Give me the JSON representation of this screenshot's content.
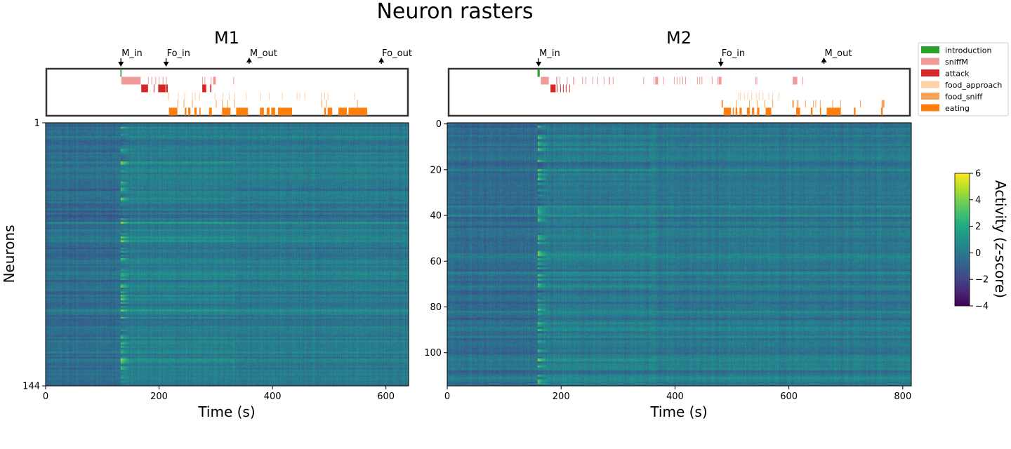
{
  "title": "Neuron rasters",
  "colorbar": {
    "label": "Activity (z-score)",
    "min": -4,
    "max": 6,
    "ticks": [
      "6",
      "4",
      "2",
      "0",
      "−2",
      "−4"
    ],
    "tick_values": [
      6,
      4,
      2,
      0,
      -2,
      -4
    ]
  },
  "legend": [
    {
      "name": "introduction",
      "color": "#2ca02c"
    },
    {
      "name": "sniffM",
      "color": "#f09a9a"
    },
    {
      "name": "attack",
      "color": "#d62728"
    },
    {
      "name": "food_approach",
      "color": "#ffd2a8"
    },
    {
      "name": "food_sniff",
      "color": "#f7a35c"
    },
    {
      "name": "eating",
      "color": "#ff7f0e"
    }
  ],
  "chart_data": [
    {
      "type": "heatmap",
      "title": "M1",
      "xlabel": "Time (s)",
      "ylabel": "Neurons",
      "xlim": [
        0,
        640
      ],
      "n_neurons": 144,
      "x_ticks": [
        0,
        200,
        400,
        600
      ],
      "x_tick_labels": [
        "0",
        "200",
        "400",
        "600"
      ],
      "y_ticks": [
        1,
        144
      ],
      "y_tick_labels": [
        "1",
        "144"
      ],
      "events": [
        {
          "label": "M_in",
          "time": 132,
          "direction": "down"
        },
        {
          "label": "Fo_in",
          "time": 212,
          "direction": "down"
        },
        {
          "label": "M_out",
          "time": 359,
          "direction": "up"
        },
        {
          "label": "Fo_out",
          "time": 593,
          "direction": "up"
        }
      ],
      "behaviors": {
        "introduction": [
          [
            131,
            133
          ]
        ],
        "sniffM": [
          [
            133,
            167
          ],
          [
            180,
            181
          ],
          [
            186,
            187
          ],
          [
            193,
            194
          ],
          [
            199,
            200
          ],
          [
            206,
            207
          ],
          [
            212,
            213
          ],
          [
            276,
            277
          ],
          [
            280,
            281
          ],
          [
            291,
            292
          ],
          [
            295,
            300
          ],
          [
            331,
            332
          ]
        ],
        "attack": [
          [
            168,
            180
          ],
          [
            190,
            191
          ],
          [
            198,
            211
          ],
          [
            212,
            215
          ],
          [
            276,
            283
          ],
          [
            290,
            292
          ]
        ],
        "food_approach": [
          [
            215,
            217
          ],
          [
            233,
            234
          ],
          [
            244,
            245
          ],
          [
            258,
            259
          ],
          [
            263,
            264
          ],
          [
            271,
            272
          ],
          [
            298,
            299
          ],
          [
            312,
            313
          ],
          [
            323,
            324
          ],
          [
            333,
            334
          ],
          [
            353,
            354
          ],
          [
            379,
            380
          ],
          [
            394,
            395
          ],
          [
            417,
            418
          ],
          [
            443,
            444
          ],
          [
            448,
            449
          ],
          [
            457,
            458
          ],
          [
            486,
            487
          ],
          [
            492,
            493
          ],
          [
            498,
            499
          ],
          [
            545,
            546
          ]
        ],
        "food_sniff": [
          [
            232,
            233
          ],
          [
            243,
            244
          ],
          [
            258,
            259
          ],
          [
            300,
            301
          ],
          [
            311,
            312
          ],
          [
            320,
            321
          ],
          [
            332,
            333
          ],
          [
            487,
            488
          ],
          [
            495,
            496
          ],
          [
            550,
            551
          ]
        ],
        "eating": [
          [
            217,
            232
          ],
          [
            245,
            248
          ],
          [
            251,
            255
          ],
          [
            262,
            266
          ],
          [
            271,
            273
          ],
          [
            288,
            293
          ],
          [
            311,
            326
          ],
          [
            336,
            357
          ],
          [
            378,
            385
          ],
          [
            390,
            395
          ],
          [
            398,
            405
          ],
          [
            410,
            435
          ],
          [
            492,
            495
          ],
          [
            498,
            506
          ],
          [
            517,
            532
          ],
          [
            535,
            568
          ]
        ]
      }
    },
    {
      "type": "heatmap",
      "title": "M2",
      "xlabel": "Time (s)",
      "ylabel": "",
      "xlim": [
        0,
        815
      ],
      "n_neurons": 115,
      "x_ticks": [
        0,
        200,
        400,
        600,
        800
      ],
      "x_tick_labels": [
        "0",
        "200",
        "400",
        "600",
        "800"
      ],
      "y_ticks": [
        0,
        20,
        40,
        60,
        80,
        100
      ],
      "y_tick_labels": [
        "0",
        "20",
        "40",
        "60",
        "80",
        "100"
      ],
      "events": [
        {
          "label": "M_in",
          "time": 159,
          "direction": "down"
        },
        {
          "label": "Fo_in",
          "time": 481,
          "direction": "down"
        },
        {
          "label": "M_out",
          "time": 663,
          "direction": "up"
        }
      ],
      "behaviors": {
        "introduction": [
          [
            157,
            161
          ]
        ],
        "sniffM": [
          [
            163,
            177
          ],
          [
            190,
            192
          ],
          [
            196,
            197
          ],
          [
            209,
            210
          ],
          [
            220,
            222
          ],
          [
            236,
            237
          ],
          [
            242,
            243
          ],
          [
            254,
            255
          ],
          [
            263,
            264
          ],
          [
            274,
            275
          ],
          [
            283,
            285
          ],
          [
            290,
            291
          ],
          [
            344,
            345
          ],
          [
            362,
            363
          ],
          [
            365,
            370
          ],
          [
            379,
            380
          ],
          [
            398,
            399
          ],
          [
            403,
            404
          ],
          [
            408,
            409
          ],
          [
            413,
            414
          ],
          [
            418,
            419
          ],
          [
            439,
            440
          ],
          [
            443,
            444
          ],
          [
            447,
            448
          ],
          [
            465,
            466
          ],
          [
            475,
            476
          ],
          [
            477,
            482
          ],
          [
            542,
            543
          ],
          [
            544,
            545
          ],
          [
            608,
            616
          ],
          [
            625,
            626
          ]
        ],
        "attack": [
          [
            180,
            189
          ],
          [
            191,
            192
          ],
          [
            197,
            198
          ],
          [
            202,
            203
          ],
          [
            207,
            208
          ],
          [
            213,
            214
          ]
        ],
        "food_approach": [
          [
            512,
            513
          ],
          [
            515,
            516
          ],
          [
            522,
            523
          ],
          [
            528,
            529
          ],
          [
            535,
            536
          ],
          [
            543,
            544
          ],
          [
            548,
            549
          ],
          [
            555,
            556
          ],
          [
            565,
            566
          ],
          [
            572,
            573
          ],
          [
            583,
            584
          ]
        ],
        "food_sniff": [
          [
            482,
            485
          ],
          [
            508,
            509
          ],
          [
            531,
            532
          ],
          [
            545,
            546
          ],
          [
            558,
            559
          ],
          [
            572,
            573
          ],
          [
            607,
            608
          ],
          [
            609,
            610
          ],
          [
            615,
            616
          ],
          [
            617,
            618
          ],
          [
            630,
            631
          ],
          [
            644,
            645
          ],
          [
            648,
            649
          ],
          [
            656,
            657
          ],
          [
            678,
            679
          ],
          [
            692,
            693
          ],
          [
            727,
            728
          ],
          [
            765,
            770
          ]
        ],
        "eating": [
          [
            486,
            499
          ],
          [
            502,
            504
          ],
          [
            507,
            510
          ],
          [
            514,
            518
          ],
          [
            527,
            532
          ],
          [
            536,
            540
          ],
          [
            545,
            549
          ],
          [
            560,
            570
          ],
          [
            614,
            621
          ],
          [
            640,
            643
          ],
          [
            656,
            658
          ],
          [
            668,
            693
          ],
          [
            716,
            719
          ],
          [
            764,
            767
          ]
        ]
      }
    }
  ]
}
